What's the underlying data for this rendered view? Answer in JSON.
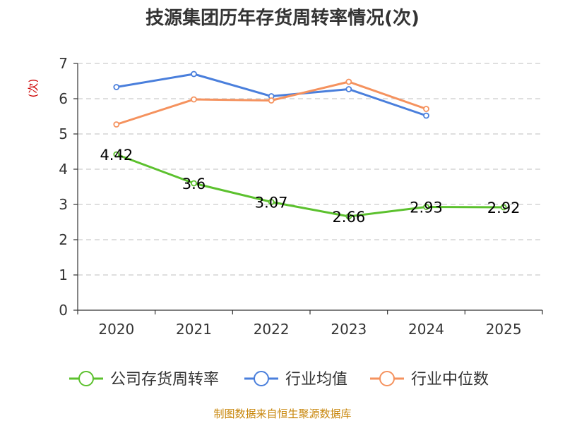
{
  "chart_data": {
    "type": "line",
    "title": "技源集团历年存货周转率情况(次)",
    "ylabel": "(次)",
    "xlabel": "",
    "categories": [
      "2020",
      "2021",
      "2022",
      "2023",
      "2024",
      "2025"
    ],
    "ylim": [
      0,
      7
    ],
    "yticks": [
      0,
      1,
      2,
      3,
      4,
      5,
      6,
      7
    ],
    "grid": true,
    "legend_position": "bottom",
    "series": [
      {
        "name": "公司存货周转率",
        "color": "#5cc12e",
        "values": [
          4.42,
          3.6,
          3.07,
          2.66,
          2.93,
          2.92
        ],
        "labels": [
          "4.42",
          "3.6",
          "3.07",
          "2.66",
          "2.93",
          "2.92"
        ]
      },
      {
        "name": "行业均值",
        "color": "#4a7fdc",
        "values": [
          6.33,
          6.7,
          6.07,
          6.27,
          5.52,
          null
        ]
      },
      {
        "name": "行业中位数",
        "color": "#f5925e",
        "values": [
          5.27,
          5.98,
          5.95,
          6.48,
          5.71,
          null
        ]
      }
    ],
    "source": "制图数据来自恒生聚源数据库"
  }
}
